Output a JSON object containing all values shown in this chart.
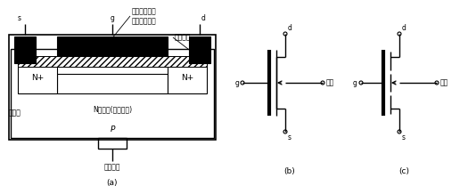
{
  "bg_color": "#ffffff",
  "label_a": "(a)",
  "label_b": "(b)",
  "label_c": "(c)",
  "text_dopant": "掺杂后具有正\n离子的绝缘层",
  "text_sio2": "二氧化硅",
  "text_nchannel": "N型沟道(初始沟道)",
  "text_depletion": "耗尽层",
  "text_substrate_lead": "衬底引线",
  "text_N1": "N+",
  "text_N2": "N+",
  "text_P": "P",
  "label_s_a": "s",
  "label_g_a": "g",
  "label_d_a": "d",
  "label_d_b": "d",
  "label_g_b": "g",
  "label_s_b": "s",
  "label_substrate_b": "衬底",
  "label_d_c": "d",
  "label_g_c": "g",
  "label_s_c": "s",
  "label_substrate_c": "衬底"
}
